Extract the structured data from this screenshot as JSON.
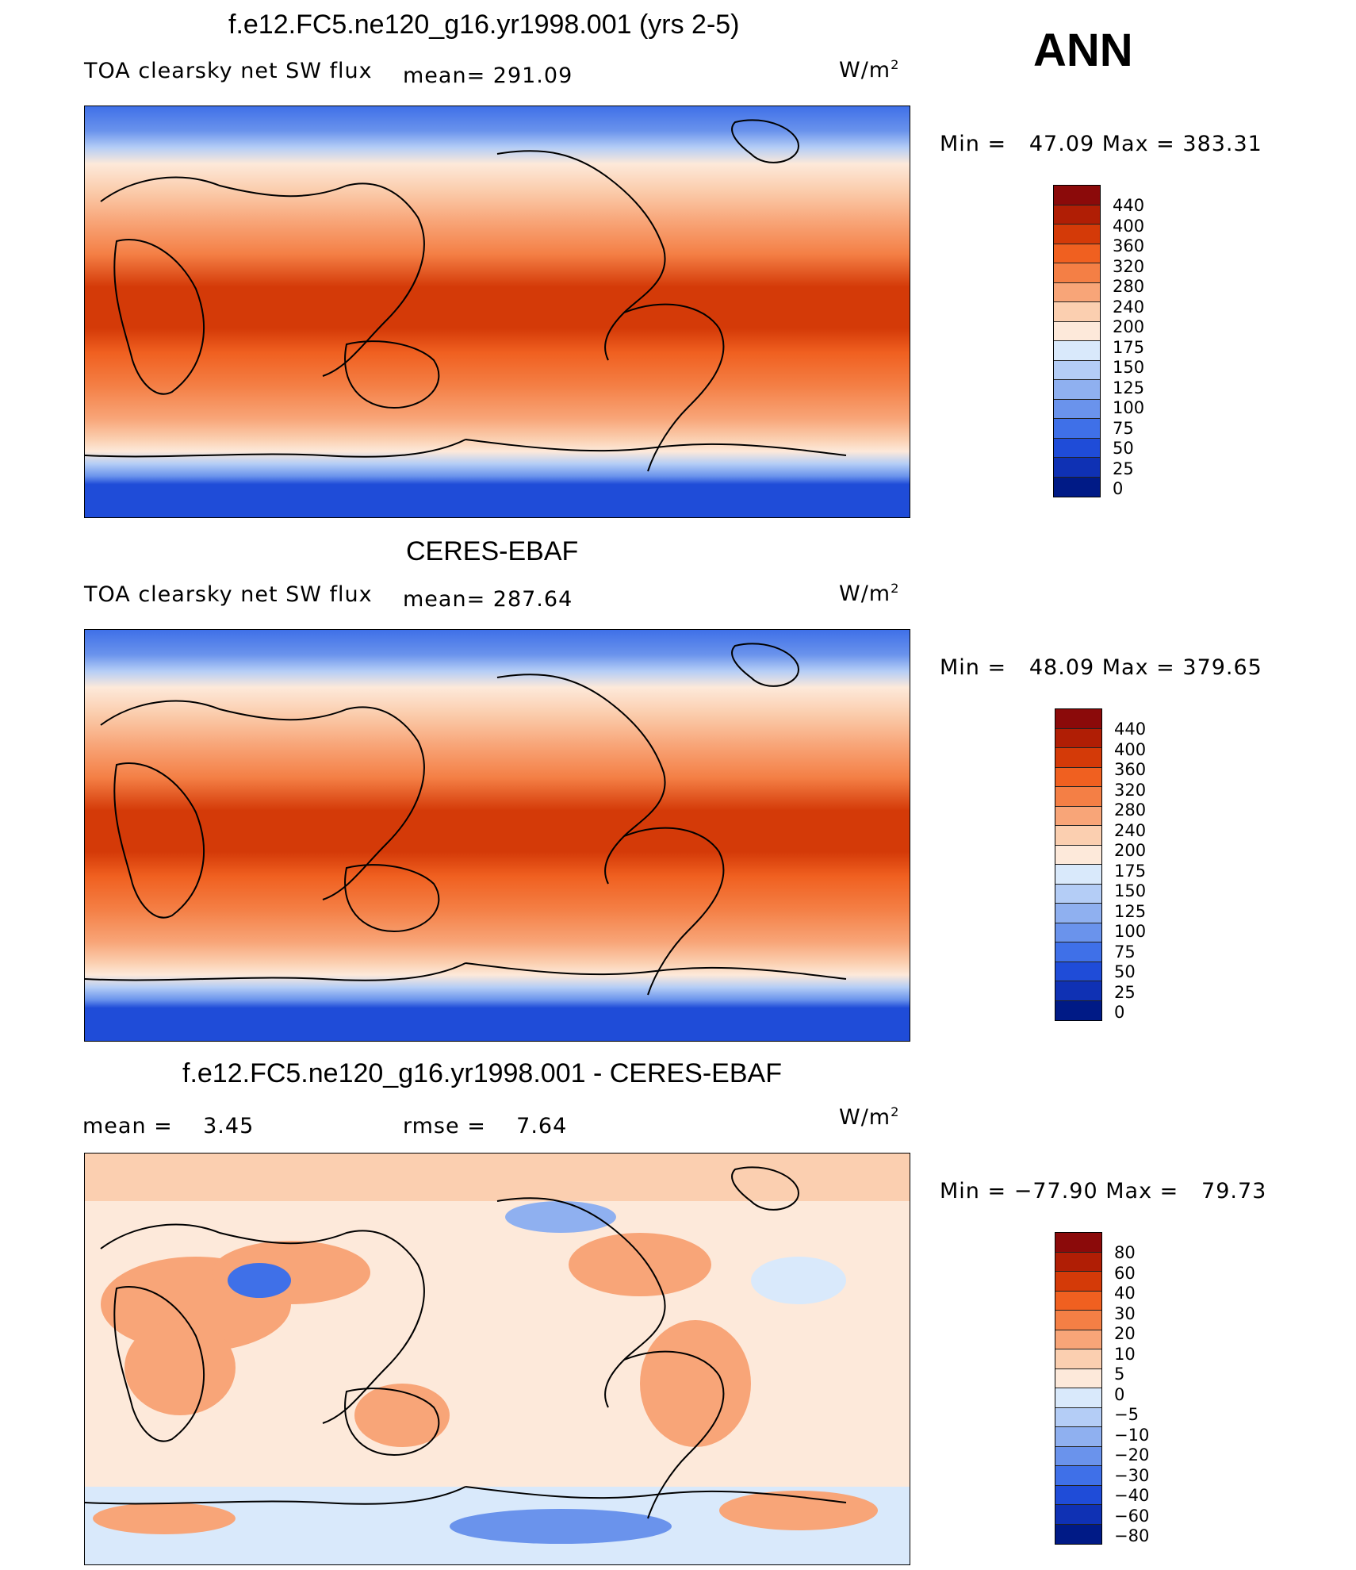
{
  "season": "ANN",
  "units_base": "W/m",
  "units_exp": "2",
  "panel1": {
    "title": "f.e12.FC5.ne120_g16.yr1998.001 (yrs 2-5)",
    "variable": "TOA clearsky net SW flux",
    "mean_text": "mean=  291.09",
    "min_label": "Min  =",
    "min_value": "47.09",
    "max_label": "Max  =",
    "max_value": "383.31"
  },
  "panel2": {
    "title": "CERES-EBAF",
    "variable": "TOA clearsky net SW flux",
    "mean_text": "mean=  287.64",
    "min_label": "Min  =",
    "min_value": "48.09",
    "max_label": "Max  =",
    "max_value": "379.65"
  },
  "panel3": {
    "title": "f.e12.FC5.ne120_g16.yr1998.001 - CERES-EBAF",
    "mean_label": "mean  =",
    "mean_value": "3.45",
    "rmse_label": "rmse  =",
    "rmse_value": "7.64",
    "min_label": "Min  =",
    "min_value": "−77.90",
    "max_label": "Max  =",
    "max_value": "79.73"
  },
  "abs_colorbar": {
    "labels": [
      "440",
      "400",
      "360",
      "320",
      "280",
      "240",
      "200",
      "175",
      "150",
      "125",
      "100",
      "75",
      "50",
      "25",
      "0"
    ],
    "colors": [
      "#8b0a0a",
      "#b01e05",
      "#d43a08",
      "#f06020",
      "#f47f45",
      "#f8a578",
      "#fbcfb0",
      "#fde9da",
      "#d9e9fb",
      "#b4cdf6",
      "#8fb0f0",
      "#6a93ec",
      "#3f70e8",
      "#1f4cd8",
      "#0f31b4",
      "#001a86"
    ]
  },
  "diff_colorbar": {
    "labels": [
      "80",
      "60",
      "40",
      "30",
      "20",
      "10",
      "5",
      "0",
      "−5",
      "−10",
      "−20",
      "−30",
      "−40",
      "−60",
      "−80"
    ],
    "colors": [
      "#8b0a0a",
      "#b01e05",
      "#d43a08",
      "#f06020",
      "#f47f45",
      "#f8a578",
      "#fbcfb0",
      "#fde9da",
      "#d9e9fb",
      "#b4cdf6",
      "#8fb0f0",
      "#6a93ec",
      "#3f70e8",
      "#1f4cd8",
      "#0f31b4",
      "#001a86"
    ]
  }
}
